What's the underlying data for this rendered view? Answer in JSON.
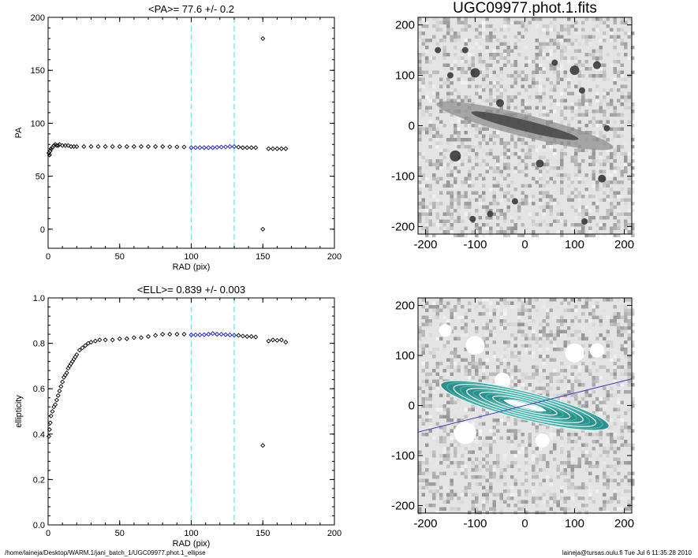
{
  "chart_data": [
    {
      "type": "scatter",
      "title": "<PA>=  77.6 +/-   0.2",
      "xlabel": "RAD (pix)",
      "ylabel": "PA",
      "xlim": [
        0,
        200
      ],
      "ylim": [
        -18,
        200
      ],
      "xticks": [
        "0",
        "50",
        "100",
        "150",
        "200"
      ],
      "yticks": [
        "0",
        "50",
        "100",
        "150",
        "200"
      ],
      "xtick_values": [
        0,
        50,
        100,
        150,
        200
      ],
      "ytick_values": [
        0,
        50,
        100,
        150,
        200
      ],
      "vlines": [
        100,
        130
      ],
      "series": [
        {
          "values": [
            [
              0.5,
              72
            ],
            [
              1,
              70
            ],
            [
              1.5,
              74
            ],
            [
              2,
              76
            ],
            [
              3,
              77
            ],
            [
              4,
              79
            ],
            [
              5,
              80
            ],
            [
              6,
              79
            ],
            [
              7,
              79
            ],
            [
              8,
              80
            ],
            [
              10,
              79
            ],
            [
              12,
              79
            ],
            [
              14,
              79
            ],
            [
              16,
              78
            ],
            [
              18,
              78
            ],
            [
              20,
              78
            ],
            [
              25,
              78
            ],
            [
              30,
              78
            ],
            [
              35,
              78
            ],
            [
              40,
              78
            ],
            [
              45,
              78
            ],
            [
              50,
              78
            ],
            [
              55,
              78
            ],
            [
              60,
              78
            ],
            [
              65,
              78
            ],
            [
              70,
              78
            ],
            [
              75,
              78
            ],
            [
              80,
              78
            ],
            [
              85,
              77.8
            ],
            [
              90,
              77.7
            ],
            [
              95,
              77.6
            ]
          ]
        },
        {
          "values": [
            [
              100,
              77
            ],
            [
              103,
              77
            ],
            [
              106,
              77
            ],
            [
              109,
              77
            ],
            [
              112,
              77
            ],
            [
              115,
              77
            ],
            [
              118,
              77.3
            ],
            [
              121,
              77.5
            ],
            [
              124,
              77.7
            ],
            [
              127,
              78
            ],
            [
              130,
              78
            ]
          ]
        },
        {
          "values": [
            [
              133,
              77.5
            ],
            [
              136,
              77
            ],
            [
              139,
              77
            ],
            [
              142,
              77
            ],
            [
              145,
              77
            ],
            [
              150,
              0
            ],
            [
              150,
              180
            ],
            [
              154,
              76
            ],
            [
              157,
              76
            ],
            [
              160,
              76
            ],
            [
              163,
              76
            ],
            [
              166,
              76
            ]
          ]
        }
      ]
    },
    {
      "type": "image",
      "title": "UGC09977.phot.1.fits",
      "xlim": [
        -215,
        215
      ],
      "ylim": [
        -215,
        215
      ],
      "xticks": [
        "-200",
        "-100",
        "0",
        "100",
        "200"
      ],
      "yticks": [
        "-200",
        "-100",
        "0",
        "100",
        "200"
      ],
      "xtick_values": [
        -200,
        -100,
        0,
        100,
        200
      ],
      "ytick_values": [
        -200,
        -100,
        0,
        100,
        200
      ]
    },
    {
      "type": "scatter",
      "title": "<ELL>= 0.839 +/-  0.003",
      "xlabel": "RAD (pix)",
      "ylabel": "ellipticity",
      "xlim": [
        0,
        200
      ],
      "ylim": [
        0,
        1
      ],
      "xticks": [
        "0",
        "50",
        "100",
        "150",
        "200"
      ],
      "yticks": [
        "0.0",
        "0.2",
        "0.4",
        "0.6",
        "0.8",
        "1.0"
      ],
      "xtick_values": [
        0,
        50,
        100,
        150,
        200
      ],
      "ytick_values": [
        0,
        0.2,
        0.4,
        0.6,
        0.8,
        1.0
      ],
      "vlines": [
        100,
        130
      ],
      "series": [
        {
          "values": [
            [
              0.5,
              0.39
            ],
            [
              1,
              0.42
            ],
            [
              1.5,
              0.45
            ],
            [
              2,
              0.48
            ],
            [
              3,
              0.5
            ],
            [
              4,
              0.52
            ],
            [
              5,
              0.53
            ],
            [
              6,
              0.55
            ],
            [
              7,
              0.57
            ],
            [
              8,
              0.59
            ],
            [
              9,
              0.61
            ],
            [
              10,
              0.63
            ],
            [
              11,
              0.65
            ],
            [
              12,
              0.66
            ],
            [
              13,
              0.67
            ],
            [
              14,
              0.69
            ],
            [
              15,
              0.7
            ],
            [
              16,
              0.71
            ],
            [
              17,
              0.72
            ],
            [
              18,
              0.73
            ],
            [
              19,
              0.74
            ],
            [
              20,
              0.75
            ],
            [
              22,
              0.77
            ],
            [
              24,
              0.78
            ],
            [
              26,
              0.79
            ],
            [
              28,
              0.8
            ],
            [
              30,
              0.805
            ],
            [
              33,
              0.81
            ],
            [
              36,
              0.815
            ],
            [
              40,
              0.815
            ],
            [
              45,
              0.815
            ],
            [
              50,
              0.82
            ],
            [
              55,
              0.82
            ],
            [
              60,
              0.825
            ],
            [
              65,
              0.825
            ],
            [
              70,
              0.83
            ],
            [
              75,
              0.835
            ],
            [
              80,
              0.84
            ],
            [
              85,
              0.84
            ],
            [
              90,
              0.84
            ],
            [
              95,
              0.84
            ]
          ]
        },
        {
          "values": [
            [
              100,
              0.837
            ],
            [
              103,
              0.837
            ],
            [
              106,
              0.837
            ],
            [
              109,
              0.838
            ],
            [
              112,
              0.84
            ],
            [
              115,
              0.843
            ],
            [
              118,
              0.84
            ],
            [
              121,
              0.84
            ],
            [
              124,
              0.838
            ],
            [
              127,
              0.837
            ],
            [
              130,
              0.836
            ]
          ]
        },
        {
          "values": [
            [
              133,
              0.835
            ],
            [
              136,
              0.832
            ],
            [
              139,
              0.83
            ],
            [
              142,
              0.83
            ],
            [
              145,
              0.828
            ],
            [
              150,
              0.35
            ],
            [
              154,
              0.81
            ],
            [
              157,
              0.815
            ],
            [
              160,
              0.813
            ],
            [
              163,
              0.815
            ],
            [
              166,
              0.805
            ]
          ]
        }
      ]
    },
    {
      "type": "image",
      "title": "",
      "xlim": [
        -215,
        215
      ],
      "ylim": [
        -215,
        215
      ],
      "xticks": [
        "-200",
        "-100",
        "0",
        "100",
        "200"
      ],
      "yticks": [
        "-200",
        "-100",
        "0",
        "100",
        "200"
      ],
      "xtick_values": [
        -200,
        -100,
        0,
        100,
        200
      ],
      "ytick_values": [
        -200,
        -100,
        0,
        100,
        200
      ]
    }
  ],
  "colors": {
    "axis": "#000000",
    "marker": "#000000",
    "fit_marker": "#1a1acc",
    "vline": "#7fe3ee",
    "image_bg": "#e4e4e4",
    "contour": "#3fb8b0",
    "fit_line": "#4040b0"
  },
  "footer": {
    "path": "/home/laineja/Desktop/WARM.1/jani_batch_1/UGC09977.phot.1_ellipse",
    "user_stamp": "laineja@tursas.oulu.fi  Tue Jul  6 11:35:28 2010"
  }
}
